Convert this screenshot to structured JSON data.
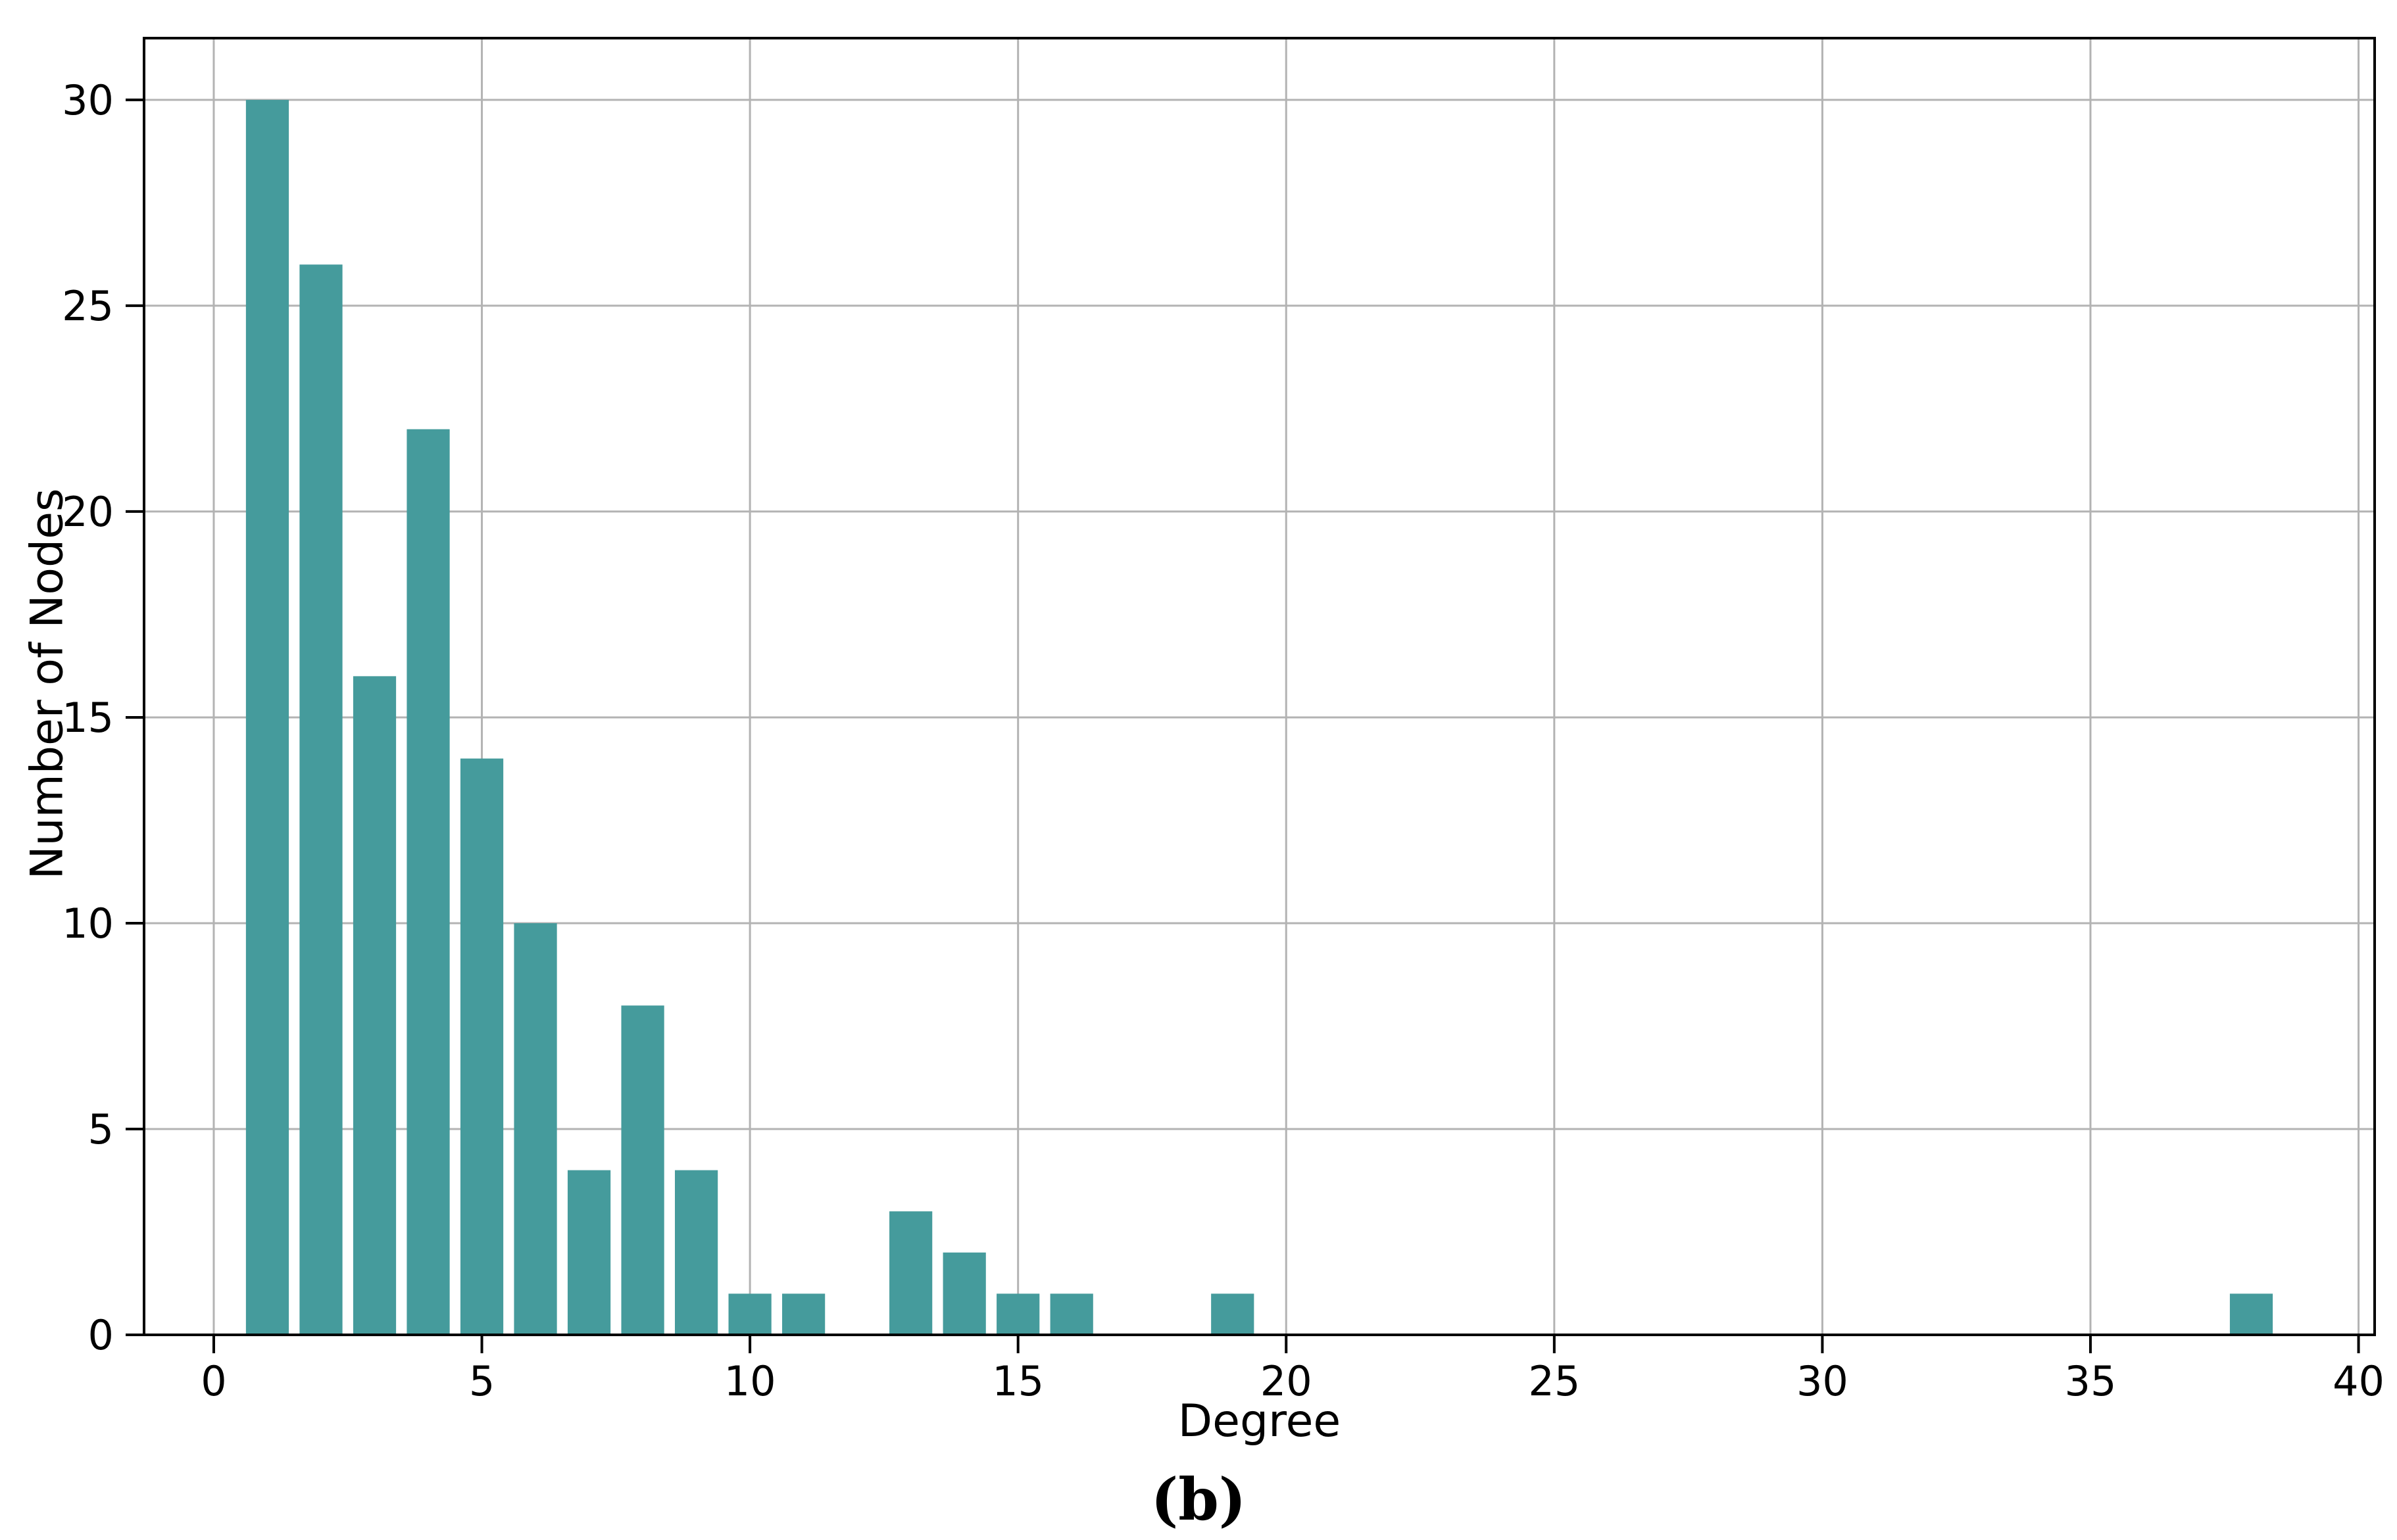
{
  "chart_data": {
    "type": "bar",
    "title": "",
    "xlabel": "Degree",
    "ylabel": "Number of Nodes",
    "caption": "(b)",
    "x": [
      1,
      2,
      3,
      4,
      5,
      6,
      7,
      8,
      9,
      10,
      11,
      13,
      14,
      15,
      16,
      19,
      38
    ],
    "values": [
      30,
      26,
      16,
      22,
      14,
      10,
      4,
      8,
      4,
      1,
      1,
      3,
      2,
      1,
      1,
      1,
      1
    ],
    "bar_width": 0.8,
    "bar_color": "#459b9c",
    "xlim": [
      -1.3,
      40.3
    ],
    "ylim": [
      0,
      31.5
    ],
    "xticks": [
      0,
      5,
      10,
      15,
      20,
      25,
      30,
      35,
      40
    ],
    "yticks": [
      0,
      5,
      10,
      15,
      20,
      25,
      30
    ],
    "grid": true,
    "grid_color": "#b3b3b3",
    "spine_color": "#000000",
    "tick_label_color": "#000000",
    "legend": null
  }
}
